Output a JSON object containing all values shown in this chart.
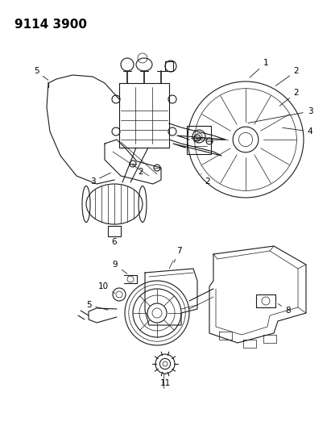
{
  "title": "9114 3900",
  "background_color": "#ffffff",
  "line_color": "#1a1a1a",
  "text_color": "#000000",
  "figsize": [
    4.11,
    5.33
  ],
  "dpi": 100,
  "label_fontsize": 7.5,
  "title_fontsize": 11
}
